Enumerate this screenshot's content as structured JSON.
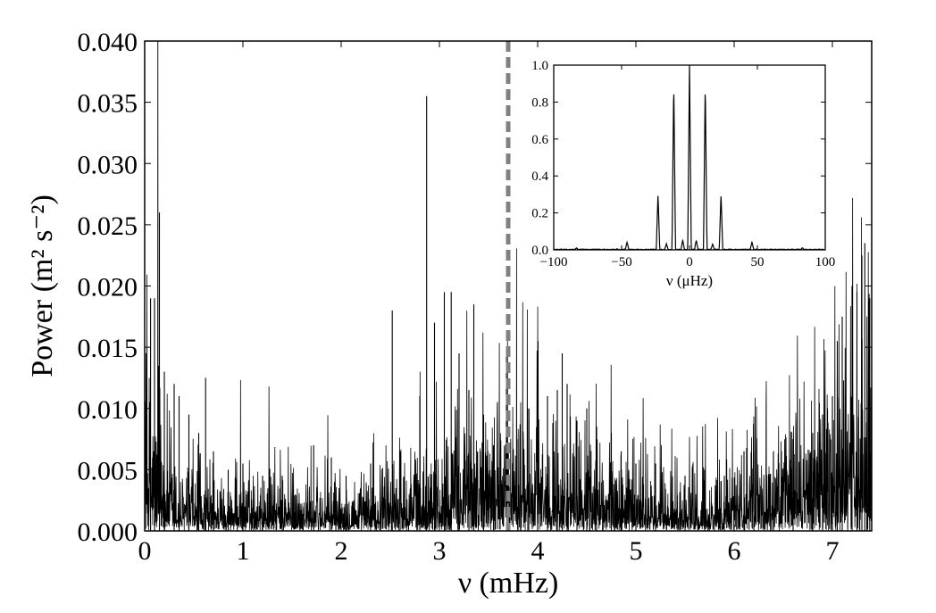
{
  "chart_data": [
    {
      "type": "line",
      "role": "main",
      "xlabel": "ν (mHz)",
      "ylabel": "Power (m² s⁻²)",
      "xlim": [
        0,
        7.4
      ],
      "ylim": [
        0,
        0.04
      ],
      "xticks": [
        0,
        1,
        2,
        3,
        4,
        5,
        6,
        7
      ],
      "xtick_labels": [
        "0",
        "1",
        "2",
        "3",
        "4",
        "5",
        "6",
        "7"
      ],
      "yticks": [
        0,
        0.005,
        0.01,
        0.015,
        0.02,
        0.025,
        0.03,
        0.035,
        0.04
      ],
      "ytick_labels": [
        "0.000",
        "0.005",
        "0.010",
        "0.015",
        "0.020",
        "0.025",
        "0.030",
        "0.035",
        "0.040"
      ],
      "grid": false,
      "series_color": "#000000",
      "vertical_marker": {
        "x": 3.7,
        "style": "dashed",
        "color": "#808080"
      },
      "peaks": [
        [
          0.06,
          0.019
        ],
        [
          0.1,
          0.019
        ],
        [
          0.15,
          0.026
        ],
        [
          0.2,
          0.013
        ],
        [
          0.3,
          0.012
        ],
        [
          0.35,
          0.011
        ],
        [
          0.45,
          0.0095
        ],
        [
          0.55,
          0.008
        ],
        [
          0.62,
          0.0125
        ],
        [
          0.7,
          0.0065
        ],
        [
          0.85,
          0.005
        ],
        [
          1.0,
          0.0055
        ],
        [
          1.2,
          0.0045
        ],
        [
          1.4,
          0.0045
        ],
        [
          1.72,
          0.007
        ],
        [
          1.9,
          0.006
        ],
        [
          2.05,
          0.0045
        ],
        [
          2.3,
          0.0055
        ],
        [
          2.52,
          0.018
        ],
        [
          2.6,
          0.0065
        ],
        [
          2.8,
          0.011
        ],
        [
          2.87,
          0.0355
        ],
        [
          2.95,
          0.017
        ],
        [
          3.05,
          0.0195
        ],
        [
          3.12,
          0.0195
        ],
        [
          3.2,
          0.0145
        ],
        [
          3.3,
          0.0115
        ],
        [
          3.35,
          0.0185
        ],
        [
          3.45,
          0.0095
        ],
        [
          3.55,
          0.007
        ],
        [
          3.8,
          0.0075
        ],
        [
          3.9,
          0.01
        ],
        [
          4.0,
          0.0095
        ],
        [
          4.1,
          0.011
        ],
        [
          4.2,
          0.0115
        ],
        [
          4.25,
          0.0145
        ],
        [
          4.3,
          0.012
        ],
        [
          4.4,
          0.009
        ],
        [
          4.5,
          0.01
        ],
        [
          4.6,
          0.0085
        ],
        [
          4.75,
          0.008
        ],
        [
          4.85,
          0.0065
        ],
        [
          5.0,
          0.0055
        ],
        [
          5.2,
          0.0055
        ],
        [
          5.5,
          0.0045
        ],
        [
          5.7,
          0.005
        ],
        [
          5.9,
          0.0045
        ],
        [
          6.1,
          0.0065
        ],
        [
          6.2,
          0.0065
        ],
        [
          6.4,
          0.0065
        ],
        [
          6.6,
          0.0075
        ],
        [
          6.8,
          0.008
        ],
        [
          6.9,
          0.0095
        ],
        [
          7.0,
          0.011
        ],
        [
          7.05,
          0.0155
        ],
        [
          7.1,
          0.0175
        ],
        [
          7.2,
          0.02
        ],
        [
          7.25,
          0.0195
        ],
        [
          7.3,
          0.0225
        ],
        [
          7.33,
          0.0235
        ],
        [
          7.38,
          0.019
        ]
      ]
    },
    {
      "type": "line",
      "role": "inset",
      "xlabel": "ν (μHz)",
      "xlim": [
        -100,
        100
      ],
      "ylim": [
        0,
        1.0
      ],
      "xticks": [
        -100,
        -50,
        0,
        50,
        100
      ],
      "xtick_labels": [
        "−100",
        "−50",
        "0",
        "50",
        "100"
      ],
      "yticks": [
        0,
        0.2,
        0.4,
        0.6,
        0.8,
        1.0
      ],
      "ytick_labels": [
        "0.0",
        "0.2",
        "0.4",
        "0.6",
        "0.8",
        "1.0"
      ],
      "grid": false,
      "series_color": "#000000",
      "peaks": [
        [
          0,
          1.0
        ],
        [
          -11.6,
          0.91
        ],
        [
          11.6,
          0.91
        ],
        [
          -23.2,
          0.3
        ],
        [
          23.2,
          0.3
        ],
        [
          -46,
          0.04
        ],
        [
          46,
          0.04
        ],
        [
          -5,
          0.05
        ],
        [
          5,
          0.05
        ],
        [
          -17,
          0.03
        ],
        [
          17,
          0.03
        ],
        [
          -83,
          0.008
        ],
        [
          83,
          0.008
        ]
      ]
    }
  ]
}
